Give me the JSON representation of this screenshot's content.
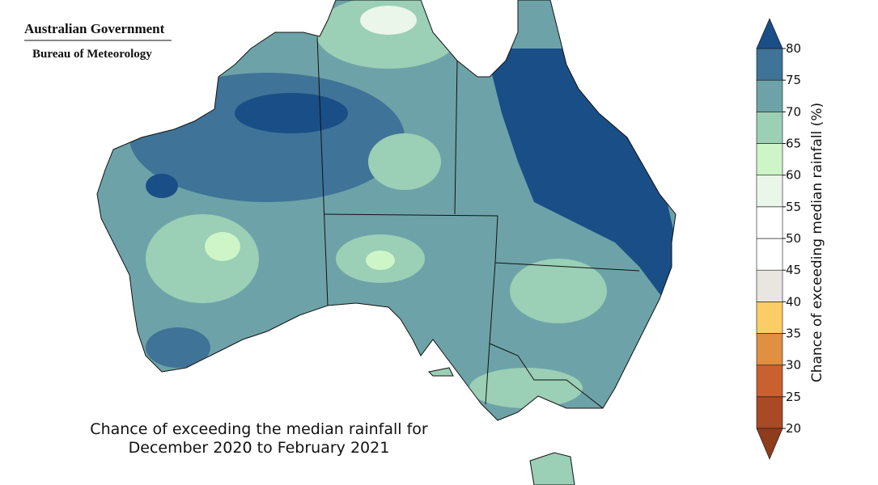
{
  "header": {
    "government": "Australian Government",
    "bureau": "Bureau of Meteorology"
  },
  "caption": [
    "Chance of exceeding the median rainfall for",
    "December 2020 to February 2021"
  ],
  "colorbar": {
    "label": "Chance of exceeding median rainfall (%)",
    "ticks": [
      20,
      25,
      30,
      35,
      40,
      45,
      50,
      55,
      60,
      65,
      70,
      75,
      80
    ],
    "colors": [
      "#a84a25",
      "#c9602f",
      "#df9040",
      "#fccc67",
      "#e9e5e1",
      "#ffffff",
      "#ffffff",
      "#eaf6e9",
      "#cdf5c8",
      "#9bcfb6",
      "#6da3a8",
      "#3f7397"
    ],
    "under_color": "#8e3c1c",
    "over_color": "#1a4e87"
  }
}
